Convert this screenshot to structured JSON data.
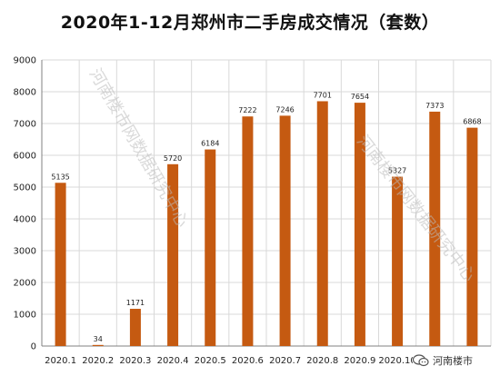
{
  "chart_data": {
    "type": "bar",
    "title": "2020年1-12月郑州市二手房成交情况（套数）",
    "categories": [
      "2020.1",
      "2020.2",
      "2020.3",
      "2020.4",
      "2020.5",
      "2020.6",
      "2020.7",
      "2020.8",
      "2020.9",
      "2020.10",
      "2020.11",
      "2020.12"
    ],
    "values": [
      5135,
      34,
      1171,
      5720,
      6184,
      7222,
      7246,
      7701,
      7654,
      5327,
      7373,
      6868
    ],
    "ylim": [
      0,
      9000
    ],
    "yticks": [
      0,
      1000,
      2000,
      3000,
      4000,
      5000,
      6000,
      7000,
      8000,
      9000
    ],
    "grid": true,
    "bar_color": "#c55a11",
    "xlabel": "",
    "ylabel": ""
  },
  "watermarks": [
    "河南楼市网数据研究中心",
    "河南楼市网数据研究中心"
  ],
  "logo": {
    "text": "河南楼市",
    "icon": "chat-bubble-icon"
  }
}
